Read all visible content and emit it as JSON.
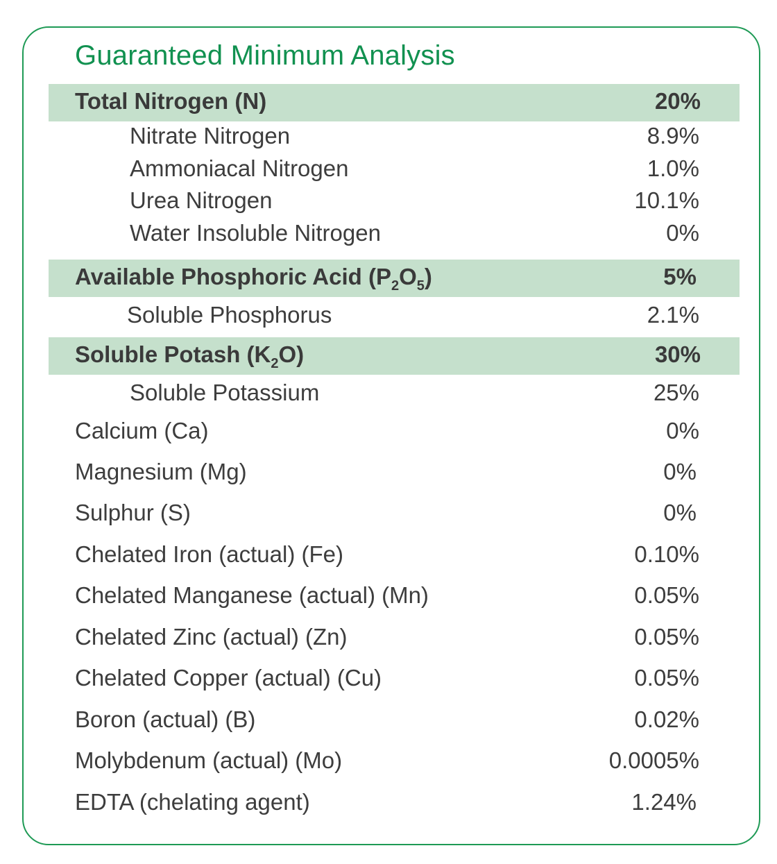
{
  "title": "Guaranteed Minimum Analysis",
  "sections": {
    "nitrogen": {
      "label": "Total Nitrogen (N)",
      "value": "20%",
      "items": [
        {
          "label": "Nitrate Nitrogen",
          "value": "8.9%"
        },
        {
          "label": "Ammoniacal Nitrogen",
          "value": "1.0%"
        },
        {
          "label": "Urea Nitrogen",
          "value": "10.1%"
        },
        {
          "label": "Water Insoluble Nitrogen",
          "value": "0%"
        }
      ]
    },
    "phosphoric": {
      "label_pre": "Available Phosphoric Acid (P",
      "sub1": "2",
      "label_mid": "O",
      "sub2": "5",
      "label_post": ")",
      "value": "5%",
      "items": [
        {
          "label": "Soluble Phosphorus",
          "value": "2.1%"
        }
      ]
    },
    "potash": {
      "label_pre": "Soluble Potash (K",
      "sub1": "2",
      "label_post": "O)",
      "value": "30%",
      "items": [
        {
          "label": "Soluble Potassium",
          "value": "25%"
        }
      ]
    }
  },
  "nutrients": [
    {
      "label": "Calcium (Ca)",
      "value": "0%"
    },
    {
      "label": "Magnesium (Mg)",
      "value": "0%"
    },
    {
      "label": "Sulphur (S)",
      "value": "0%"
    },
    {
      "label": "Chelated Iron (actual) (Fe)",
      "value": "0.10%"
    },
    {
      "label": "Chelated Manganese (actual) (Mn)",
      "value": "0.05%"
    },
    {
      "label": "Chelated Zinc (actual) (Zn)",
      "value": "0.05%"
    },
    {
      "label": "Chelated Copper (actual) (Cu)",
      "value": "0.05%"
    },
    {
      "label": "Boron (actual) (B)",
      "value": "0.02%"
    },
    {
      "label": "Molybdenum (actual) (Mo)",
      "value": "0.0005%"
    },
    {
      "label": "EDTA (chelating agent)",
      "value": "1.24%"
    }
  ],
  "colors": {
    "title": "#119150",
    "border": "#1e9a55",
    "header_band": "#c5e0cc",
    "text": "#3d3d3d"
  }
}
